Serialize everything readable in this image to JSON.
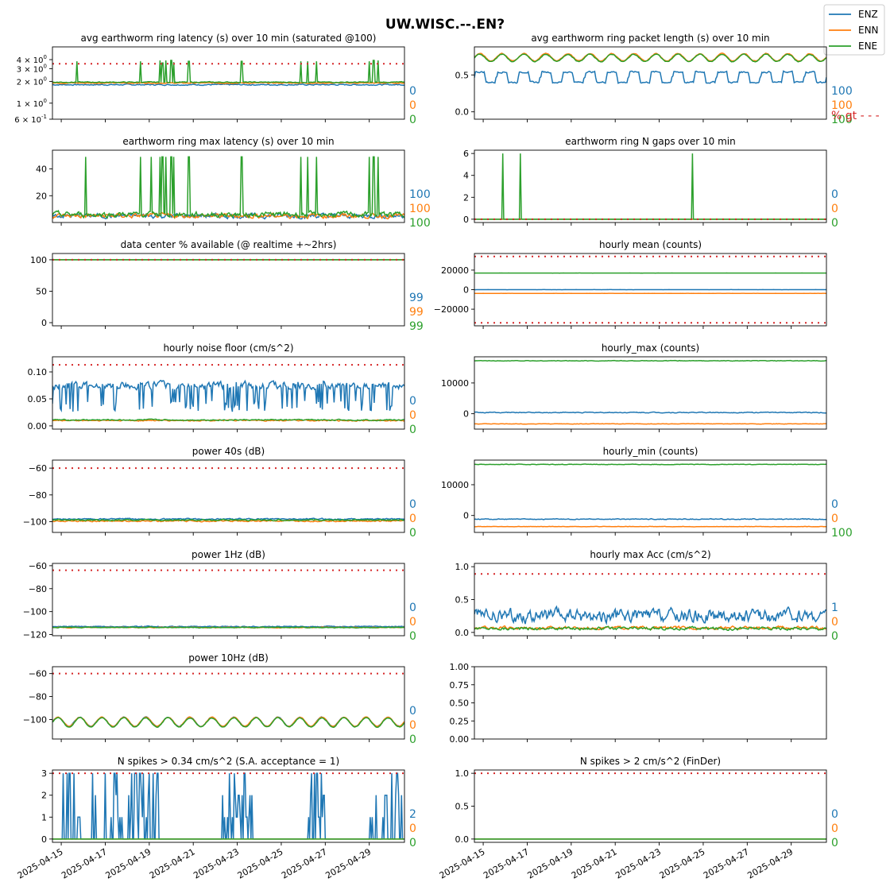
{
  "figure": {
    "title": "UW.WISC.--.EN?",
    "legend": [
      {
        "name": "ENZ",
        "color": "#1f77b4"
      },
      {
        "name": "ENN",
        "color": "#ff7f0e"
      },
      {
        "name": "ENE",
        "color": "#2ca02c"
      }
    ],
    "threshold_note": "% gt - - -",
    "threshold_color": "#d62728",
    "x_ticks": [
      "2025-04-15",
      "2025-04-17",
      "2025-04-19",
      "2025-04-21",
      "2025-04-23",
      "2025-04-25",
      "2025-04-27",
      "2025-04-29"
    ]
  },
  "chart_data": [
    {
      "id": "avg_latency",
      "type": "line",
      "title": "avg earthworm ring latency (s)   over 10 min (saturated @100)",
      "yscale": "log",
      "ylim": [
        0.6,
        6
      ],
      "yticks": [
        {
          "v": 4,
          "b": "4",
          "e": "0"
        },
        {
          "v": 3,
          "b": "3",
          "e": "0"
        },
        {
          "v": 2,
          "b": "2",
          "e": "0"
        },
        {
          "v": 1,
          "b": "1",
          "e": "0"
        },
        {
          "v": 0.6,
          "b": "6",
          "e": "-1"
        }
      ],
      "threshold": 3.5,
      "pct": [
        "0",
        "0",
        "0"
      ],
      "xlim": [
        0,
        16
      ],
      "series": [
        {
          "name": "ENZ",
          "base": 1.8,
          "noise": 0.06
        },
        {
          "name": "ENN",
          "base": 1.9,
          "noise": 0.05
        },
        {
          "name": "ENE",
          "base": 1.95,
          "noise": 0.05,
          "spikes": [
            [
              1.1,
              3.8
            ],
            [
              4.0,
              3.8
            ],
            [
              4.9,
              3.9
            ],
            [
              5.0,
              3.6
            ],
            [
              5.15,
              3.9
            ],
            [
              5.4,
              3.9
            ],
            [
              5.5,
              3.7
            ],
            [
              6.2,
              3.8
            ],
            [
              8.6,
              3.8
            ],
            [
              11.3,
              3.8
            ],
            [
              11.6,
              3.8
            ],
            [
              12.0,
              3.8
            ],
            [
              14.4,
              3.8
            ],
            [
              14.6,
              3.9
            ],
            [
              14.8,
              3.9
            ]
          ]
        }
      ]
    },
    {
      "id": "packet_length",
      "type": "line",
      "title": "avg earthworm ring packet length (s)   over 10 min",
      "ylim": [
        -0.1,
        0.88
      ],
      "yticks": [
        0.0,
        0.5
      ],
      "threshold": null,
      "pct": [
        "100",
        "100",
        "100"
      ],
      "xlim": [
        0,
        16
      ],
      "series": [
        {
          "name": "ENZ",
          "base": 0.47,
          "amp": 0.07,
          "period": 1.0,
          "noise": 0.02,
          "square": true
        },
        {
          "name": "ENN",
          "base": 0.74,
          "amp": 0.05,
          "period": 1.0,
          "noise": 0.01
        },
        {
          "name": "ENE",
          "base": 0.73,
          "amp": 0.05,
          "period": 1.0,
          "noise": 0.01
        }
      ]
    },
    {
      "id": "max_latency",
      "type": "line",
      "title": "earthworm ring max latency (s)   over 10 min",
      "ylim": [
        0,
        54
      ],
      "yticks": [
        20,
        40
      ],
      "threshold": null,
      "pct": [
        "100",
        "100",
        "100"
      ],
      "xlim": [
        0,
        16
      ],
      "series": [
        {
          "name": "ENZ",
          "base": 5,
          "noise": 3
        },
        {
          "name": "ENN",
          "base": 5,
          "noise": 3
        },
        {
          "name": "ENE",
          "base": 6,
          "noise": 3.5,
          "spikes": [
            [
              1.5,
              49
            ],
            [
              4.0,
              49
            ],
            [
              4.5,
              49
            ],
            [
              4.9,
              49
            ],
            [
              5.0,
              49
            ],
            [
              5.15,
              49
            ],
            [
              5.4,
              49
            ],
            [
              5.5,
              49
            ],
            [
              6.2,
              49
            ],
            [
              8.6,
              49
            ],
            [
              11.3,
              49
            ],
            [
              11.6,
              49
            ],
            [
              12.0,
              49
            ],
            [
              14.4,
              49
            ],
            [
              14.6,
              49
            ],
            [
              14.8,
              49
            ]
          ]
        }
      ]
    },
    {
      "id": "n_gaps",
      "type": "line",
      "title": "earthworm ring N gaps   over 10 min",
      "ylim": [
        -0.3,
        6.3
      ],
      "yticks": [
        0,
        2,
        4,
        6
      ],
      "threshold": 0,
      "pct": [
        "0",
        "0",
        "0"
      ],
      "xlim": [
        0,
        16
      ],
      "series": [
        {
          "name": "ENZ",
          "base": 0,
          "noise": 0
        },
        {
          "name": "ENN",
          "base": 0,
          "noise": 0
        },
        {
          "name": "ENE",
          "base": 0,
          "noise": 0,
          "spikes": [
            [
              1.3,
              6
            ],
            [
              2.1,
              6
            ],
            [
              9.9,
              6
            ]
          ]
        }
      ]
    },
    {
      "id": "available",
      "type": "line",
      "title": "data center % available (@ realtime +~2hrs)",
      "ylim": [
        -5,
        110
      ],
      "yticks": [
        0,
        50,
        100
      ],
      "threshold": 100,
      "pct": [
        "99",
        "99",
        "99"
      ],
      "xlim": [
        0,
        16
      ],
      "series": [
        {
          "name": "ENZ",
          "base": 100,
          "noise": 0
        },
        {
          "name": "ENN",
          "base": 100,
          "noise": 0
        },
        {
          "name": "ENE",
          "base": 100,
          "noise": 0
        }
      ]
    },
    {
      "id": "hourly_mean",
      "type": "line",
      "title": "hourly mean (counts)",
      "ylim": [
        -37000,
        37000
      ],
      "yticks": [
        -20000,
        0,
        20000
      ],
      "threshold": [
        34000,
        -34000
      ],
      "pct": null,
      "xlim": [
        0,
        16
      ],
      "series": [
        {
          "name": "ENZ",
          "base": 0,
          "noise": 80
        },
        {
          "name": "ENN",
          "base": -3800,
          "noise": 80
        },
        {
          "name": "ENE",
          "base": 17000,
          "noise": 80
        }
      ]
    },
    {
      "id": "noise_floor",
      "type": "line",
      "title": "hourly noise floor (cm/s^2)",
      "ylim": [
        -0.006,
        0.128
      ],
      "yticks": [
        0.0,
        0.05,
        0.1
      ],
      "threshold": 0.113,
      "pct": [
        "0",
        "0",
        "0"
      ],
      "xlim": [
        0,
        16
      ],
      "series": [
        {
          "name": "ENZ",
          "base": 0.075,
          "noise": 0.012,
          "dips": true
        },
        {
          "name": "ENN",
          "base": 0.01,
          "noise": 0.002
        },
        {
          "name": "ENE",
          "base": 0.011,
          "noise": 0.002
        }
      ]
    },
    {
      "id": "hourly_max",
      "type": "line",
      "title": "hourly_max (counts)",
      "ylim": [
        -5000,
        18500
      ],
      "yticks": [
        0,
        10000
      ],
      "threshold": null,
      "pct": null,
      "xlim": [
        0,
        16
      ],
      "series": [
        {
          "name": "ENZ",
          "base": 400,
          "noise": 250
        },
        {
          "name": "ENN",
          "base": -3300,
          "noise": 120
        },
        {
          "name": "ENE",
          "base": 17200,
          "noise": 150
        }
      ]
    },
    {
      "id": "power40s",
      "type": "line",
      "title": "power 40s (dB)",
      "ylim": [
        -108,
        -54
      ],
      "yticks": [
        -100,
        -80,
        -60
      ],
      "threshold": -60,
      "pct": [
        "0",
        "0",
        "0"
      ],
      "xlim": [
        0,
        16
      ],
      "series": [
        {
          "name": "ENZ",
          "base": -98,
          "noise": 0.8
        },
        {
          "name": "ENN",
          "base": -99.5,
          "noise": 0.9
        },
        {
          "name": "ENE",
          "base": -98.8,
          "noise": 0.9
        }
      ]
    },
    {
      "id": "hourly_min",
      "type": "line",
      "title": "hourly_min (counts)",
      "ylim": [
        -5500,
        18000
      ],
      "yticks": [
        0,
        10000
      ],
      "threshold": null,
      "pct": [
        "0",
        "0",
        "100"
      ],
      "xlim": [
        0,
        16
      ],
      "series": [
        {
          "name": "ENZ",
          "base": -1200,
          "noise": 250
        },
        {
          "name": "ENN",
          "base": -3600,
          "noise": 120
        },
        {
          "name": "ENE",
          "base": 16600,
          "noise": 150
        }
      ]
    },
    {
      "id": "power1hz",
      "type": "line",
      "title": "power 1Hz (dB)",
      "ylim": [
        -121,
        -58
      ],
      "yticks": [
        -120,
        -100,
        -80,
        -60
      ],
      "threshold": -64,
      "pct": [
        "0",
        "0",
        "0"
      ],
      "xlim": [
        0,
        16
      ],
      "series": [
        {
          "name": "ENZ",
          "base": -113,
          "noise": 0.7
        },
        {
          "name": "ENN",
          "base": -113.8,
          "noise": 0.6
        },
        {
          "name": "ENE",
          "base": -113.8,
          "noise": 0.6
        }
      ]
    },
    {
      "id": "hourly_max_acc",
      "type": "line",
      "title": "hourly max Acc (cm/s^2)",
      "ylim": [
        -0.05,
        1.05
      ],
      "yticks": [
        0.0,
        0.5,
        1.0
      ],
      "threshold": 0.89,
      "pct": [
        "1",
        "0",
        "0"
      ],
      "xlim": [
        0,
        16
      ],
      "series": [
        {
          "name": "ENZ",
          "base": 0.25,
          "noise": 0.18
        },
        {
          "name": "ENN",
          "base": 0.07,
          "noise": 0.04
        },
        {
          "name": "ENE",
          "base": 0.06,
          "noise": 0.04
        }
      ]
    },
    {
      "id": "power10hz",
      "type": "line",
      "title": "power 10Hz (dB)",
      "ylim": [
        -117,
        -54
      ],
      "yticks": [
        -100,
        -80,
        -60
      ],
      "threshold": -60,
      "pct": [
        "0",
        "0",
        "0"
      ],
      "xlim": [
        0,
        16
      ],
      "series": [
        {
          "name": "ENZ",
          "base": -102,
          "amp": 4,
          "period": 1.0,
          "noise": 0.6
        },
        {
          "name": "ENN",
          "base": -102,
          "amp": 4,
          "period": 1.0,
          "noise": 0.6
        },
        {
          "name": "ENE",
          "base": -102.5,
          "amp": 4,
          "period": 1.0,
          "noise": 0.6
        }
      ]
    },
    {
      "id": "empty",
      "type": "line",
      "title": "",
      "ylim": [
        0,
        1
      ],
      "yticks": [
        0.0,
        0.25,
        0.5,
        0.75,
        1.0
      ],
      "threshold": null,
      "pct": null,
      "xlim": [
        0,
        16
      ],
      "series": []
    },
    {
      "id": "spikes034",
      "type": "line",
      "title": "N spikes > 0.34 cm/s^2 (S.A. acceptance = 1)",
      "ylim": [
        -0.15,
        3.15
      ],
      "yticks": [
        0,
        1,
        2,
        3
      ],
      "threshold": 3,
      "pct": [
        "2",
        "0",
        "0"
      ],
      "xlim": [
        0,
        16
      ],
      "series": [
        {
          "name": "ENZ",
          "base": 0,
          "noise": 0,
          "bursty": true
        },
        {
          "name": "ENN",
          "base": 0,
          "noise": 0
        },
        {
          "name": "ENE",
          "base": 0,
          "noise": 0
        }
      ]
    },
    {
      "id": "spikes2",
      "type": "line",
      "title": "N spikes > 2 cm/s^2 (FinDer)",
      "ylim": [
        -0.05,
        1.05
      ],
      "yticks": [
        0.0,
        0.5,
        1.0
      ],
      "threshold": 1,
      "pct": [
        "0",
        "0",
        "0"
      ],
      "xlim": [
        0,
        16
      ],
      "series": [
        {
          "name": "ENZ",
          "base": 0,
          "noise": 0
        },
        {
          "name": "ENN",
          "base": 0,
          "noise": 0
        },
        {
          "name": "ENE",
          "base": 0,
          "noise": 0
        }
      ]
    }
  ]
}
